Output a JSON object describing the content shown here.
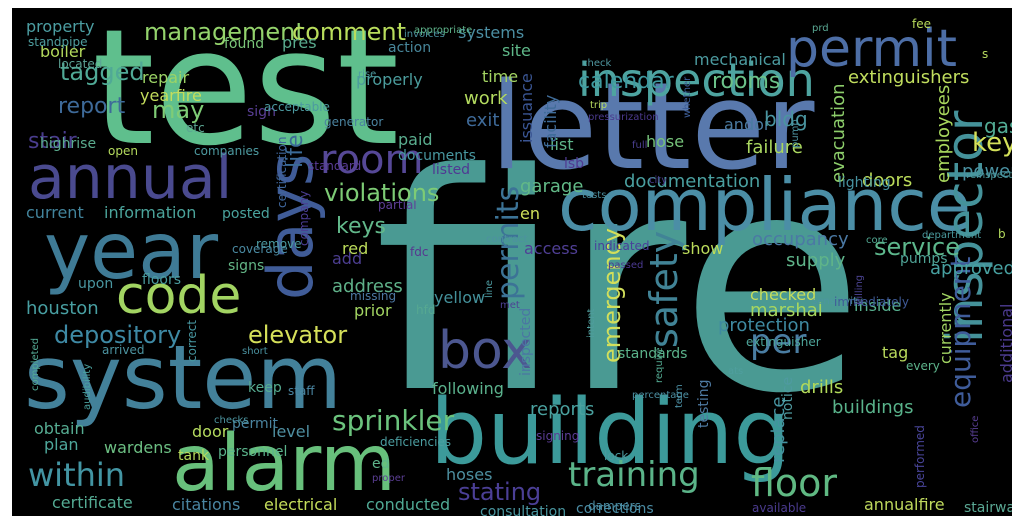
{
  "wordcloud": {
    "words": [
      {
        "text": "fire",
        "color": "#4a9a93"
      },
      {
        "text": "test",
        "color": "#5fbf8d"
      },
      {
        "text": "letter",
        "color": "#5979ad"
      },
      {
        "text": "system",
        "color": "#43819a"
      },
      {
        "text": "building",
        "color": "#3c9a9a"
      },
      {
        "text": "alarm",
        "color": "#68c07c"
      },
      {
        "text": "compliance",
        "color": "#4b8ea6"
      },
      {
        "text": "year",
        "color": "#3f7b96"
      },
      {
        "text": "annual",
        "color": "#4a4a8f"
      },
      {
        "text": "code",
        "color": "#a2d462"
      },
      {
        "text": "days",
        "color": "#405c98"
      },
      {
        "text": "inspection",
        "color": "#4ea4a0"
      },
      {
        "text": "permit",
        "color": "#4d6ea6"
      },
      {
        "text": "box",
        "color": "#4c5790"
      },
      {
        "text": "room",
        "color": "#564897"
      },
      {
        "text": "inspector",
        "color": "#45929a"
      },
      {
        "text": "within",
        "color": "#4395a3"
      },
      {
        "text": "training",
        "color": "#5bb489"
      },
      {
        "text": "floor",
        "color": "#60b983"
      },
      {
        "text": "safety",
        "color": "#418396"
      },
      {
        "text": "permits",
        "color": "#3c7396"
      },
      {
        "text": "sprinkler",
        "color": "#6bc37d"
      },
      {
        "text": "per",
        "color": "#4a7da2"
      },
      {
        "text": "elevator",
        "color": "#d5e05a"
      },
      {
        "text": "depository",
        "color": "#3e89a4"
      },
      {
        "text": "violations",
        "color": "#7dcb75"
      },
      {
        "text": "tagged",
        "color": "#50a996"
      },
      {
        "text": "management",
        "color": "#94d36c"
      },
      {
        "text": "comment",
        "color": "#b9dd5c"
      },
      {
        "text": "report",
        "color": "#3e6a99"
      },
      {
        "text": "may",
        "color": "#7fcc76"
      },
      {
        "text": "stair",
        "color": "#4a3d8e"
      },
      {
        "text": "key",
        "color": "#d4e15a"
      },
      {
        "text": "keys",
        "color": "#62b88a"
      },
      {
        "text": "service",
        "color": "#5db78c"
      },
      {
        "text": "stating",
        "color": "#4b3f96"
      },
      {
        "text": "emergency",
        "color": "#d2df5b"
      },
      {
        "text": "equipment",
        "color": "#3f5c9a"
      },
      {
        "text": "calendar",
        "color": "#3f9aa0"
      },
      {
        "text": "rooms",
        "color": "#6bc289"
      },
      {
        "text": "extinguishers",
        "color": "#c1de5e"
      },
      {
        "text": "houston",
        "color": "#489fa2"
      },
      {
        "text": "information",
        "color": "#4ba49b"
      },
      {
        "text": "current",
        "color": "#42849c"
      },
      {
        "text": "occupancy",
        "color": "#4b79a4"
      },
      {
        "text": "marshal",
        "color": "#a6d65f"
      },
      {
        "text": "documentation",
        "color": "#4aa0a0"
      },
      {
        "text": "garage",
        "color": "#62b987"
      },
      {
        "text": "reports",
        "color": "#4aa19f"
      },
      {
        "text": "drills",
        "color": "#b1d95a"
      },
      {
        "text": "buildings",
        "color": "#59b38b"
      },
      {
        "text": "replace",
        "color": "#4593a0"
      },
      {
        "text": "protection",
        "color": "#3f8aa1"
      },
      {
        "text": "doors",
        "color": "#bcdc5b"
      },
      {
        "text": "failure",
        "color": "#aad760"
      },
      {
        "text": "evacuation",
        "color": "#8ccc6a"
      },
      {
        "text": "employees",
        "color": "#a7d65d"
      },
      {
        "text": "gas",
        "color": "#52ac95"
      },
      {
        "text": "power",
        "color": "#4a91a1"
      },
      {
        "text": "supply",
        "color": "#5fb489"
      },
      {
        "text": "approved",
        "color": "#47a0a0"
      },
      {
        "text": "inside",
        "color": "#57b08f"
      },
      {
        "text": "tag",
        "color": "#b8d95c"
      },
      {
        "text": "certificate",
        "color": "#54ab93"
      },
      {
        "text": "citations",
        "color": "#4a85a1"
      },
      {
        "text": "electrical",
        "color": "#c4dd5b"
      },
      {
        "text": "conducted",
        "color": "#50a994"
      },
      {
        "text": "consultation",
        "color": "#4996a0"
      },
      {
        "text": "corrections",
        "color": "#4a8ba3"
      },
      {
        "text": "annualfire",
        "color": "#bfd95d"
      },
      {
        "text": "stairway",
        "color": "#5aa894"
      },
      {
        "text": "wardens",
        "color": "#6cbf83"
      },
      {
        "text": "plan",
        "color": "#4ea79b"
      },
      {
        "text": "obtain",
        "color": "#56ac92"
      },
      {
        "text": "door",
        "color": "#b5db5f"
      },
      {
        "text": "level",
        "color": "#4f8fa1"
      },
      {
        "text": "following",
        "color": "#5bb28d"
      },
      {
        "text": "address",
        "color": "#5fb189"
      },
      {
        "text": "prior",
        "color": "#a3d562"
      },
      {
        "text": "red",
        "color": "#bcdc5b"
      },
      {
        "text": "yellow",
        "color": "#44919b"
      },
      {
        "text": "en",
        "color": "#cfe05a"
      },
      {
        "text": "access",
        "color": "#503f96"
      },
      {
        "text": "show",
        "color": "#bcdc5b"
      },
      {
        "text": "exit",
        "color": "#3f6b9a"
      },
      {
        "text": "work",
        "color": "#b3da5f"
      },
      {
        "text": "time",
        "color": "#a3d462"
      },
      {
        "text": "site",
        "color": "#5fb889"
      },
      {
        "text": "systems",
        "color": "#4c8fa3"
      },
      {
        "text": "properly",
        "color": "#4b9c9c"
      },
      {
        "text": "paid",
        "color": "#5aae8f"
      },
      {
        "text": "listed",
        "color": "#503893"
      },
      {
        "text": "list",
        "color": "#5fb68b"
      },
      {
        "text": "hose",
        "color": "#76c37a"
      },
      {
        "text": "andor",
        "color": "#4a7ba1"
      },
      {
        "text": "mechanical",
        "color": "#4c9ba0"
      },
      {
        "text": "facility",
        "color": "#3f6c99"
      },
      {
        "text": "issuance",
        "color": "#3a5593"
      },
      {
        "text": "life",
        "color": "#3b6b97"
      },
      {
        "text": "boiler",
        "color": "#b2d95c"
      },
      {
        "text": "property",
        "color": "#4c9ea2"
      },
      {
        "text": "highrise",
        "color": "#5aac8e"
      },
      {
        "text": "repair",
        "color": "#9cd466"
      },
      {
        "text": "yearfire",
        "color": "#c4dd5c"
      },
      {
        "text": "found",
        "color": "#7bc77a"
      },
      {
        "text": "pres",
        "color": "#59ab8e"
      },
      {
        "text": "action",
        "color": "#48879b"
      },
      {
        "text": "open",
        "color": "#b5db5e"
      },
      {
        "text": "documents",
        "color": "#4898a1"
      },
      {
        "text": "sign",
        "color": "#5a3f96"
      },
      {
        "text": "lighting",
        "color": "#4792a0"
      },
      {
        "text": "pumps",
        "color": "#4fa496"
      },
      {
        "text": "standards",
        "color": "#5bb38b"
      },
      {
        "text": "fdc",
        "color": "#56378f"
      },
      {
        "text": "hfd",
        "color": "#56a891"
      },
      {
        "text": "lsb",
        "color": "#503a92"
      },
      {
        "text": "additional",
        "color": "#4b3a8c"
      },
      {
        "text": "signs",
        "color": "#64b787"
      },
      {
        "text": "add",
        "color": "#4c3e91"
      },
      {
        "text": "upon",
        "color": "#4996a0"
      },
      {
        "text": "floors",
        "color": "#4a9b9e"
      },
      {
        "text": "posted",
        "color": "#4aa39d"
      },
      {
        "text": "keep",
        "color": "#56ac91"
      },
      {
        "text": "permit",
        "color": "#4a84a0"
      },
      {
        "text": "testing",
        "color": "#4e7aa2"
      },
      {
        "text": "checked",
        "color": "#c5dd5c"
      },
      {
        "text": "extinguisher",
        "color": "#4ea69b"
      },
      {
        "text": "currently",
        "color": "#a1d462"
      },
      {
        "text": "tank",
        "color": "#b6da5c"
      },
      {
        "text": "personnel",
        "color": "#5bb48c"
      },
      {
        "text": "deficiencies",
        "color": "#4c9ea1"
      },
      {
        "text": "hoses",
        "color": "#4d8fa0"
      },
      {
        "text": "lock",
        "color": "#4c9aa0"
      },
      {
        "text": "dampers",
        "color": "#4a8ca2"
      },
      {
        "text": "available",
        "color": "#4b3b8f"
      },
      {
        "text": "notice",
        "color": "#4f9aa0"
      },
      {
        "text": "inspected",
        "color": "#4b76a3"
      },
      {
        "text": "fee",
        "color": "#b8db5c"
      },
      {
        "text": "standpipe",
        "color": "#4f9fa0"
      },
      {
        "text": "located",
        "color": "#5da496"
      },
      {
        "text": "etc",
        "color": "#5ca793"
      },
      {
        "text": "companies",
        "color": "#4d9aa0"
      },
      {
        "text": "company",
        "color": "#4a3d92"
      },
      {
        "text": "certification",
        "color": "#3f669b"
      },
      {
        "text": "partial",
        "color": "#5e3f98"
      },
      {
        "text": "completed",
        "color": "#53a994"
      },
      {
        "text": "remove",
        "color": "#4c9aa0"
      },
      {
        "text": "missing",
        "color": "#4d78a2"
      },
      {
        "text": "arrived",
        "color": "#4c93a0"
      },
      {
        "text": "correct",
        "color": "#4796a0"
      },
      {
        "text": "audibility",
        "color": "#4aa19e"
      },
      {
        "text": "short",
        "color": "#4a92a0"
      },
      {
        "text": "checks",
        "color": "#4d95a0"
      },
      {
        "text": "staff",
        "color": "#4a86a2"
      },
      {
        "text": "signing",
        "color": "#5c3e96"
      },
      {
        "text": "require",
        "color": "#53ab92"
      },
      {
        "text": "percentage",
        "color": "#4c8fa2"
      },
      {
        "text": "term",
        "color": "#4b8ea2"
      },
      {
        "text": "ats",
        "color": "#4f9e9e"
      },
      {
        "text": "every",
        "color": "#5db48b"
      },
      {
        "text": "performed",
        "color": "#49459a"
      },
      {
        "text": "sensitivity",
        "color": "#4c96a0"
      },
      {
        "text": "immediately",
        "color": "#3f5b98"
      },
      {
        "text": "billing",
        "color": "#4b4392"
      },
      {
        "text": "core",
        "color": "#53a994"
      },
      {
        "text": "department",
        "color": "#4a9a9e"
      },
      {
        "text": "office",
        "color": "#5a3f96"
      },
      {
        "text": "reinspection",
        "color": "#4a9a9d"
      },
      {
        "text": "standard",
        "color": "#5a3d97"
      },
      {
        "text": "generator",
        "color": "#4b84a0"
      },
      {
        "text": "rise",
        "color": "#4e9ba0"
      },
      {
        "text": "invoices",
        "color": "#4b92a0"
      },
      {
        "text": "acceptable",
        "color": "#4c9aa0"
      },
      {
        "text": "appropriate",
        "color": "#5fb58b"
      },
      {
        "text": "prd",
        "color": "#5aa994"
      },
      {
        "text": "check",
        "color": "#4f97a0"
      },
      {
        "text": "pressurization",
        "color": "#4b3a8e"
      },
      {
        "text": "trip",
        "color": "#b7da5f"
      },
      {
        "text": "whether",
        "color": "#3d5e98"
      },
      {
        "text": "pump",
        "color": "#4c92a0"
      },
      {
        "text": "full",
        "color": "#4a3f90"
      },
      {
        "text": "city",
        "color": "#4a3c8e"
      },
      {
        "text": "tests",
        "color": "#4c91a0"
      },
      {
        "text": "contract",
        "color": "#4d91a0"
      },
      {
        "text": "indicated",
        "color": "#49409a"
      },
      {
        "text": "passed",
        "color": "#4b3a92"
      },
      {
        "text": "line",
        "color": "#4c9aa0"
      },
      {
        "text": "met",
        "color": "#4c4394"
      },
      {
        "text": "intent",
        "color": "#4f9d9d"
      },
      {
        "text": "proper",
        "color": "#5c3f96"
      },
      {
        "text": "coverage",
        "color": "#4a8aa2"
      },
      {
        "text": "ed",
        "color": "#5fb58b"
      },
      {
        "text": "bldg",
        "color": "#4a95a0"
      },
      {
        "text": "b",
        "color": "#b3da5e"
      },
      {
        "text": "s",
        "color": "#b7da5f"
      },
      {
        "text": "c",
        "color": "#5aab8f"
      },
      {
        "text": "d",
        "color": "#b9db5c"
      }
    ]
  }
}
